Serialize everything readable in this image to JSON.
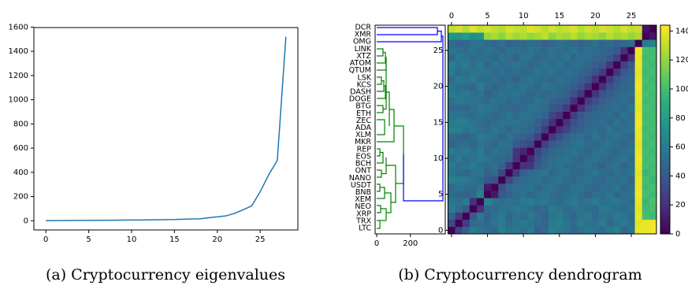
{
  "chart_data": [
    {
      "type": "line",
      "caption": "(a) Cryptocurrency eigenvalues",
      "color": "#1f77b4",
      "x": [
        0,
        1,
        2,
        3,
        4,
        5,
        6,
        7,
        8,
        9,
        10,
        11,
        12,
        13,
        14,
        15,
        16,
        17,
        18,
        19,
        20,
        21,
        22,
        23,
        24,
        25,
        26,
        27,
        28
      ],
      "values": [
        0.5,
        1,
        1.5,
        2,
        2.5,
        3,
        3.5,
        4,
        4.5,
        5,
        6,
        6.5,
        7,
        8,
        9,
        10,
        13,
        15,
        16,
        25,
        32,
        40,
        60,
        90,
        122,
        240,
        380,
        500,
        1520
      ],
      "xlim": [
        -1.4,
        29.4
      ],
      "ylim": [
        -76,
        1596
      ],
      "xticks": [
        0,
        5,
        10,
        15,
        20,
        25
      ],
      "yticks": [
        0,
        200,
        400,
        600,
        800,
        1000,
        1200,
        1400,
        1600
      ]
    },
    {
      "type": "heatmap",
      "caption": "(b) Cryptocurrency dendrogram",
      "leaves": [
        "DCR",
        "XMR",
        "OMG",
        "LINK",
        "XTZ",
        "ATOM",
        "QTUM",
        "LSK",
        "KCS",
        "DASH",
        "DOGE",
        "BTG",
        "ETH",
        "ZEC",
        "ADA",
        "XLM",
        "MKR",
        "REP",
        "EOS",
        "BCH",
        "ONT",
        "NANO",
        "USDT",
        "BNB",
        "XEM",
        "NEO",
        "XRP",
        "TRX",
        "LTC"
      ],
      "dendrogram_xlim": [
        0,
        414
      ],
      "dendrogram_xticks": [
        0,
        200
      ],
      "xlim": [
        -0.5,
        28.5
      ],
      "ylim": [
        -0.5,
        28.5
      ],
      "xticks": [
        0,
        5,
        10,
        15,
        20,
        25
      ],
      "yticks": [
        0,
        5,
        10,
        15,
        20,
        25
      ],
      "clim": [
        0,
        144
      ],
      "colorbar_ticks": [
        0,
        20,
        40,
        60,
        80,
        100,
        120,
        140
      ],
      "values": [
        [
          0,
          30,
          45,
          60,
          55,
          50,
          48,
          62,
          55,
          58,
          52,
          60,
          45,
          50,
          62,
          58,
          55,
          48,
          52,
          60,
          55,
          50,
          58,
          62,
          48,
          55,
          140,
          140,
          142
        ],
        [
          30,
          0,
          25,
          50,
          52,
          48,
          55,
          60,
          50,
          52,
          58,
          55,
          50,
          48,
          60,
          62,
          55,
          50,
          58,
          55,
          52,
          60,
          50,
          55,
          58,
          52,
          138,
          140,
          141
        ],
        [
          45,
          25,
          0,
          40,
          58,
          45,
          52,
          58,
          48,
          55,
          50,
          58,
          52,
          45,
          55,
          60,
          52,
          48,
          55,
          58,
          50,
          55,
          52,
          60,
          55,
          50,
          140,
          100,
          98
        ],
        [
          60,
          50,
          40,
          0,
          20,
          48,
          50,
          55,
          52,
          58,
          55,
          52,
          48,
          50,
          58,
          55,
          50,
          52,
          55,
          52,
          48,
          58,
          55,
          52,
          50,
          55,
          138,
          98,
          100
        ],
        [
          55,
          52,
          58,
          20,
          0,
          65,
          55,
          50,
          55,
          52,
          58,
          60,
          55,
          58,
          52,
          50,
          55,
          58,
          52,
          55,
          60,
          52,
          55,
          58,
          52,
          50,
          140,
          95,
          102
        ],
        [
          50,
          48,
          45,
          48,
          65,
          0,
          10,
          40,
          45,
          50,
          55,
          48,
          52,
          55,
          50,
          48,
          52,
          55,
          50,
          45,
          52,
          50,
          55,
          48,
          52,
          55,
          142,
          100,
          98
        ],
        [
          48,
          55,
          52,
          50,
          55,
          10,
          0,
          35,
          48,
          52,
          50,
          55,
          48,
          52,
          55,
          50,
          48,
          52,
          55,
          50,
          48,
          52,
          50,
          55,
          48,
          52,
          140,
          98,
          100
        ],
        [
          62,
          60,
          58,
          55,
          50,
          40,
          35,
          0,
          30,
          45,
          50,
          52,
          55,
          48,
          52,
          55,
          50,
          48,
          52,
          55,
          50,
          48,
          52,
          50,
          55,
          48,
          140,
          100,
          96
        ],
        [
          55,
          50,
          48,
          52,
          55,
          45,
          48,
          30,
          0,
          25,
          45,
          50,
          52,
          55,
          48,
          52,
          55,
          50,
          48,
          52,
          55,
          50,
          48,
          52,
          50,
          55,
          138,
          96,
          100
        ],
        [
          58,
          52,
          55,
          58,
          52,
          50,
          52,
          45,
          25,
          0,
          20,
          22,
          40,
          48,
          52,
          55,
          50,
          48,
          52,
          55,
          50,
          45,
          52,
          55,
          48,
          52,
          140,
          100,
          98
        ],
        [
          52,
          58,
          50,
          55,
          58,
          55,
          50,
          50,
          45,
          20,
          0,
          15,
          35,
          45,
          50,
          52,
          55,
          50,
          48,
          52,
          55,
          50,
          48,
          52,
          55,
          50,
          142,
          98,
          100
        ],
        [
          60,
          55,
          58,
          52,
          60,
          48,
          55,
          52,
          50,
          22,
          15,
          0,
          30,
          40,
          48,
          50,
          52,
          55,
          50,
          48,
          52,
          55,
          50,
          48,
          52,
          55,
          140,
          100,
          98
        ],
        [
          45,
          50,
          52,
          48,
          55,
          52,
          48,
          55,
          52,
          40,
          35,
          30,
          0,
          28,
          40,
          45,
          50,
          52,
          55,
          50,
          48,
          52,
          55,
          50,
          48,
          52,
          138,
          98,
          100
        ],
        [
          50,
          48,
          45,
          50,
          58,
          55,
          52,
          48,
          55,
          48,
          45,
          40,
          28,
          0,
          25,
          35,
          45,
          50,
          52,
          48,
          55,
          50,
          52,
          55,
          50,
          48,
          140,
          100,
          98
        ],
        [
          62,
          60,
          55,
          58,
          52,
          50,
          55,
          52,
          48,
          52,
          50,
          48,
          40,
          25,
          0,
          20,
          30,
          40,
          45,
          50,
          52,
          48,
          55,
          50,
          52,
          55,
          140,
          98,
          100
        ],
        [
          58,
          62,
          60,
          55,
          50,
          48,
          50,
          55,
          52,
          55,
          52,
          50,
          45,
          35,
          20,
          0,
          22,
          35,
          42,
          48,
          50,
          52,
          48,
          55,
          50,
          52,
          142,
          100,
          98
        ],
        [
          55,
          55,
          52,
          50,
          55,
          52,
          48,
          50,
          55,
          50,
          55,
          52,
          50,
          45,
          30,
          22,
          0,
          25,
          38,
          45,
          48,
          50,
          52,
          48,
          55,
          50,
          140,
          98,
          100
        ],
        [
          48,
          50,
          48,
          52,
          58,
          55,
          52,
          48,
          50,
          48,
          50,
          55,
          52,
          50,
          40,
          35,
          25,
          0,
          20,
          35,
          42,
          48,
          50,
          52,
          48,
          55,
          138,
          100,
          98
        ],
        [
          52,
          58,
          55,
          55,
          52,
          50,
          55,
          52,
          48,
          52,
          48,
          50,
          55,
          52,
          45,
          42,
          38,
          20,
          0,
          25,
          35,
          42,
          48,
          50,
          52,
          48,
          140,
          98,
          100
        ],
        [
          60,
          55,
          58,
          52,
          55,
          45,
          50,
          55,
          52,
          55,
          52,
          48,
          50,
          48,
          50,
          48,
          45,
          35,
          25,
          0,
          22,
          35,
          42,
          48,
          50,
          52,
          140,
          100,
          98
        ],
        [
          55,
          52,
          50,
          48,
          60,
          52,
          48,
          50,
          55,
          50,
          55,
          52,
          48,
          55,
          52,
          50,
          48,
          42,
          35,
          22,
          0,
          20,
          35,
          42,
          48,
          50,
          142,
          98,
          100
        ],
        [
          50,
          60,
          55,
          58,
          52,
          50,
          52,
          48,
          50,
          45,
          50,
          55,
          52,
          50,
          48,
          52,
          50,
          48,
          42,
          35,
          20,
          0,
          25,
          38,
          45,
          48,
          140,
          100,
          98
        ],
        [
          58,
          50,
          52,
          55,
          55,
          55,
          50,
          52,
          48,
          52,
          48,
          50,
          55,
          52,
          55,
          48,
          52,
          50,
          48,
          42,
          35,
          25,
          0,
          22,
          40,
          45,
          138,
          98,
          100
        ],
        [
          62,
          55,
          60,
          52,
          58,
          48,
          55,
          50,
          52,
          55,
          52,
          48,
          50,
          55,
          50,
          55,
          48,
          52,
          50,
          48,
          42,
          38,
          22,
          0,
          28,
          40,
          140,
          100,
          98
        ],
        [
          48,
          58,
          55,
          50,
          52,
          52,
          48,
          55,
          50,
          48,
          55,
          52,
          48,
          50,
          52,
          50,
          55,
          48,
          52,
          50,
          48,
          45,
          40,
          28,
          0,
          20,
          140,
          98,
          100
        ],
        [
          55,
          52,
          50,
          55,
          50,
          55,
          52,
          48,
          55,
          52,
          50,
          55,
          52,
          48,
          55,
          52,
          50,
          55,
          48,
          52,
          50,
          48,
          45,
          40,
          20,
          0,
          142,
          100,
          98
        ],
        [
          50,
          45,
          48,
          52,
          55,
          50,
          48,
          52,
          45,
          50,
          48,
          52,
          50,
          45,
          48,
          52,
          50,
          48,
          45,
          50,
          52,
          48,
          50,
          45,
          48,
          50,
          0,
          60,
          62
        ],
        [
          75,
          72,
          78,
          70,
          74,
          120,
          125,
          118,
          128,
          122,
          126,
          120,
          124,
          130,
          118,
          125,
          122,
          128,
          120,
          126,
          124,
          118,
          128,
          122,
          126,
          120,
          125,
          0,
          8
        ],
        [
          130,
          135,
          128,
          138,
          132,
          135,
          130,
          128,
          136,
          132,
          130,
          138,
          134,
          128,
          135,
          130,
          132,
          136,
          128,
          134,
          130,
          135,
          132,
          128,
          136,
          130,
          132,
          8,
          0
        ]
      ]
    }
  ]
}
